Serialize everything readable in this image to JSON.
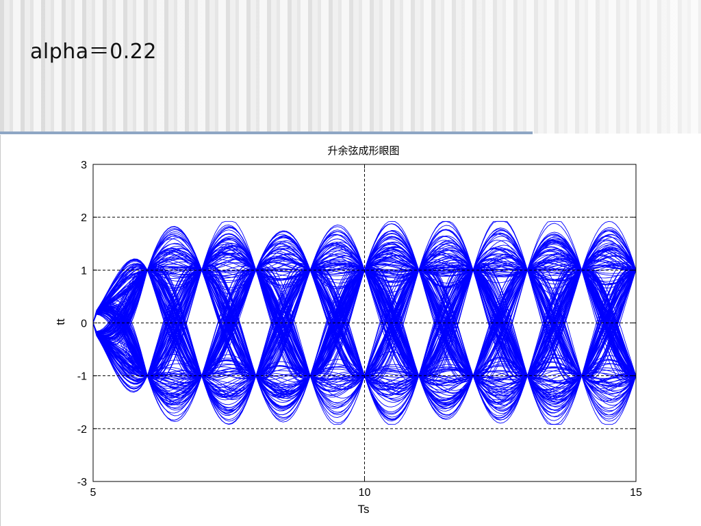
{
  "slide": {
    "title": "alpha＝0.22"
  },
  "chart_data": {
    "type": "line",
    "title": "升余弦成形眼图",
    "xlabel": "Ts",
    "ylabel": "tt",
    "xlim": [
      5,
      15
    ],
    "ylim": [
      -3,
      3
    ],
    "x_ticks": [
      5,
      10,
      15
    ],
    "y_ticks": [
      3,
      2,
      1,
      0,
      -1,
      -2,
      -3
    ],
    "grid": true,
    "grid_style": "dashed",
    "line_color": "#0000ff",
    "raised_cosine_rolloff": 0.22,
    "symbol_spacing": 1,
    "trace_count": 240,
    "series_description_points": {
      "crossing_levels": [
        -1,
        0,
        1
      ],
      "peak_amplitude_approx": 1.85,
      "eye_openings_at": [
        6,
        7,
        8,
        9,
        10,
        11,
        12,
        13,
        14
      ]
    }
  }
}
